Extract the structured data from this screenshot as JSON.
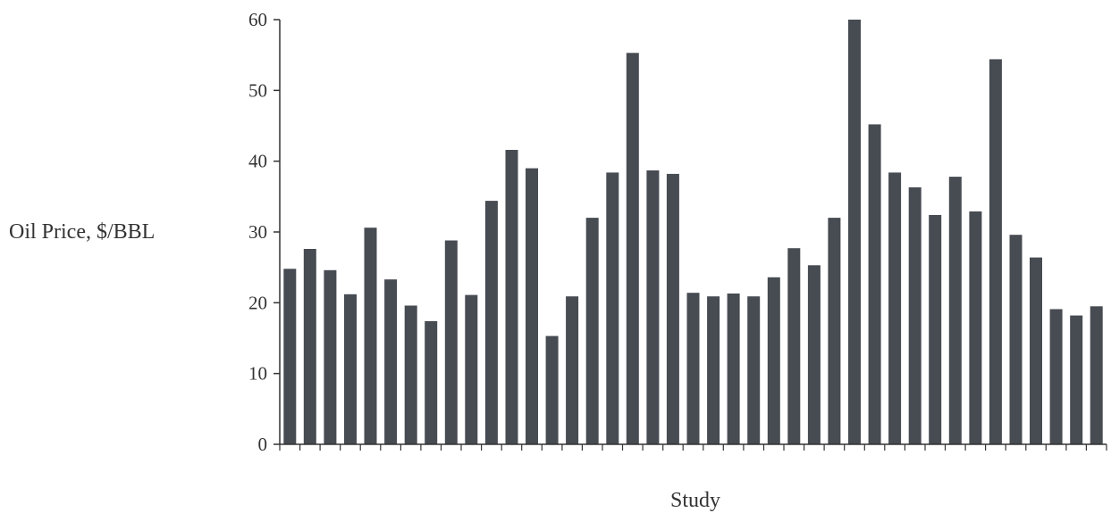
{
  "chart_data": {
    "type": "bar",
    "title": "",
    "xlabel": "Study",
    "ylabel": "Oil Price, $/BBL",
    "ylim": [
      0,
      60
    ],
    "yticks": [
      0,
      10,
      20,
      30,
      40,
      50,
      60
    ],
    "grid": false,
    "legend": "none",
    "bar_color": "#474b52",
    "values": [
      24.8,
      27.6,
      24.6,
      21.2,
      30.6,
      23.3,
      19.6,
      17.4,
      28.8,
      21.1,
      34.4,
      41.6,
      39.0,
      15.3,
      20.9,
      32.0,
      38.4,
      55.3,
      38.7,
      38.2,
      21.4,
      20.9,
      21.3,
      20.9,
      23.6,
      27.7,
      25.3,
      32.0,
      60.0,
      45.2,
      38.4,
      36.3,
      32.4,
      37.8,
      32.9,
      54.4,
      29.6,
      26.4,
      19.1,
      18.2,
      19.5
    ]
  }
}
